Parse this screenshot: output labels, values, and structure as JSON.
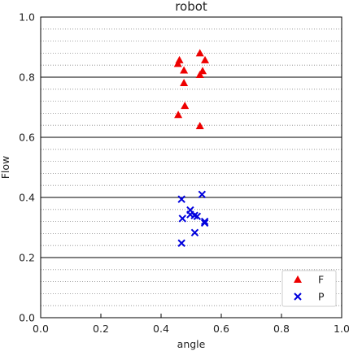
{
  "chart_data": {
    "type": "scatter",
    "title": "robot",
    "xlabel": "angle",
    "ylabel": "Flow",
    "xlim": [
      0.0,
      1.0
    ],
    "ylim": [
      0.0,
      1.0
    ],
    "x_ticks": [
      "0.0",
      "0.2",
      "0.4",
      "0.6",
      "0.8",
      "1.0"
    ],
    "y_ticks": [
      "0.0",
      "0.2",
      "0.4",
      "0.6",
      "0.8",
      "1.0"
    ],
    "grid": {
      "major": "solid",
      "minor": "dotted",
      "minor_step": 0.04
    },
    "legend_position": "bottom-right",
    "series": [
      {
        "name": "F",
        "marker": "triangle",
        "color": "#ee0000",
        "points": [
          [
            0.456,
            0.845
          ],
          [
            0.461,
            0.857
          ],
          [
            0.476,
            0.823
          ],
          [
            0.529,
            0.88
          ],
          [
            0.546,
            0.857
          ],
          [
            0.538,
            0.821
          ],
          [
            0.529,
            0.808
          ],
          [
            0.476,
            0.781
          ],
          [
            0.479,
            0.705
          ],
          [
            0.457,
            0.675
          ],
          [
            0.529,
            0.638
          ]
        ]
      },
      {
        "name": "P",
        "marker": "x",
        "color": "#0000dd",
        "points": [
          [
            0.468,
            0.394
          ],
          [
            0.536,
            0.41
          ],
          [
            0.497,
            0.358
          ],
          [
            0.497,
            0.343
          ],
          [
            0.511,
            0.34
          ],
          [
            0.52,
            0.337
          ],
          [
            0.471,
            0.33
          ],
          [
            0.545,
            0.32
          ],
          [
            0.545,
            0.315
          ],
          [
            0.512,
            0.283
          ],
          [
            0.468,
            0.248
          ]
        ]
      }
    ]
  }
}
